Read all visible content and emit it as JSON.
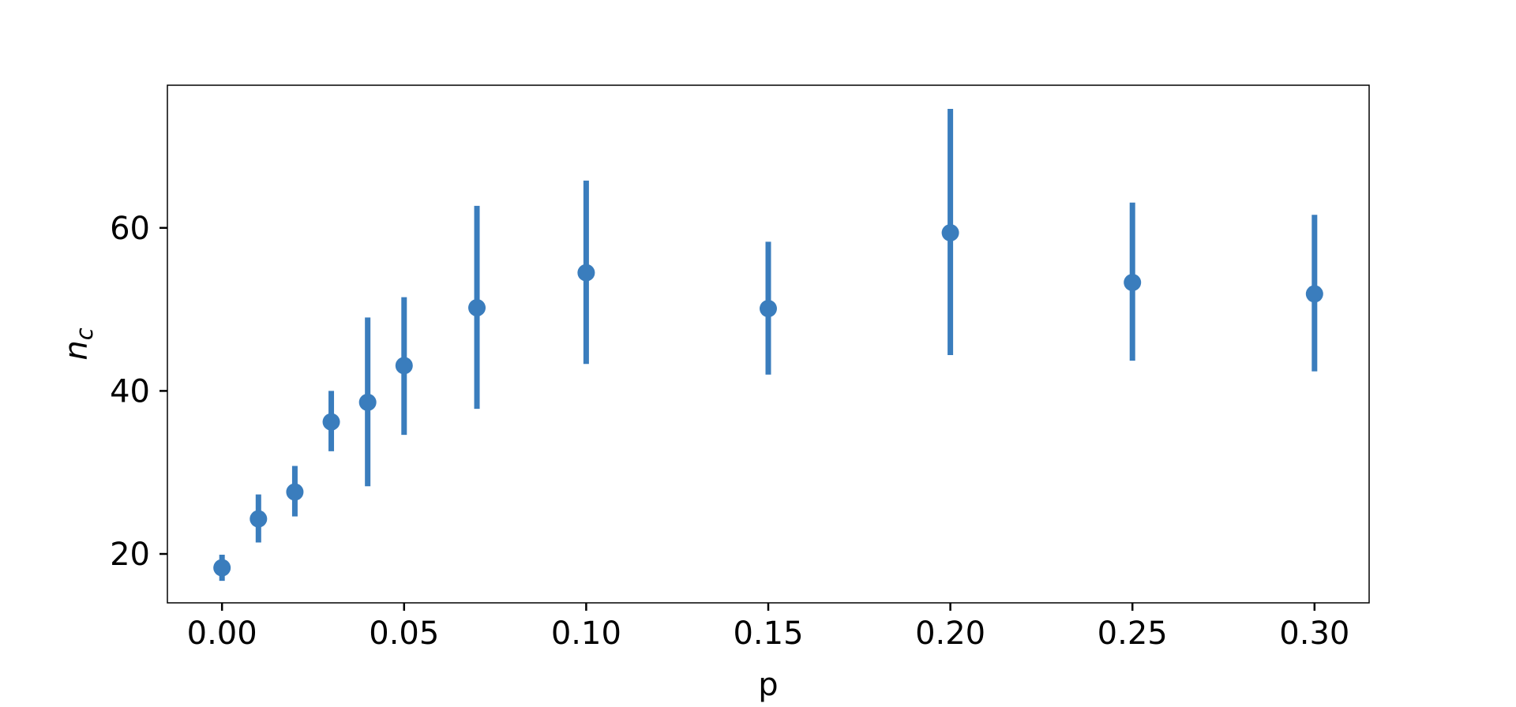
{
  "chart_data": {
    "type": "scatter",
    "title": "",
    "xlabel": "p",
    "ylabel_main": "n",
    "ylabel_sub": "c",
    "xlim": [
      -0.015,
      0.315
    ],
    "ylim": [
      14.0,
      77.5
    ],
    "xticks": [
      0.0,
      0.05,
      0.1,
      0.15,
      0.2,
      0.25,
      0.3
    ],
    "xtick_labels": [
      "0.00",
      "0.05",
      "0.10",
      "0.15",
      "0.20",
      "0.25",
      "0.30"
    ],
    "yticks": [
      20,
      40,
      60
    ],
    "ytick_labels": [
      "20",
      "40",
      "60"
    ],
    "grid": false,
    "series": [
      {
        "color": "#3a7dbd",
        "x": [
          0.0,
          0.01,
          0.02,
          0.03,
          0.04,
          0.05,
          0.07,
          0.1,
          0.15,
          0.2,
          0.25,
          0.3
        ],
        "y": [
          18.3,
          24.3,
          27.6,
          36.2,
          38.6,
          43.1,
          50.2,
          54.5,
          50.1,
          59.4,
          53.3,
          51.9
        ],
        "ylow": [
          16.7,
          21.4,
          24.6,
          32.6,
          28.3,
          34.6,
          37.8,
          43.3,
          42.0,
          44.4,
          43.7,
          42.4
        ],
        "yhigh": [
          19.9,
          27.3,
          30.8,
          40.0,
          49.0,
          51.5,
          62.7,
          65.8,
          58.3,
          74.6,
          63.1,
          61.6
        ]
      }
    ]
  }
}
